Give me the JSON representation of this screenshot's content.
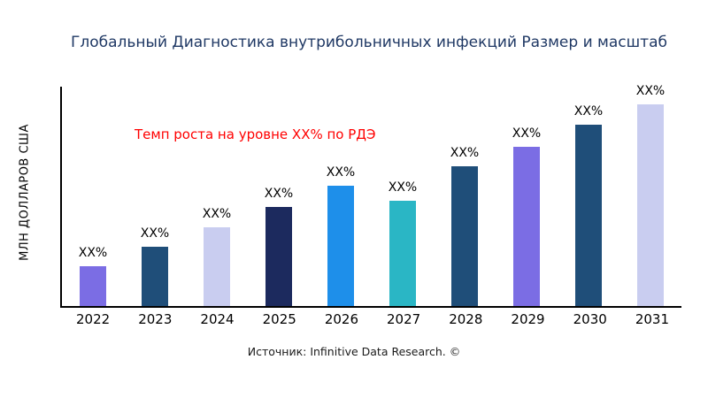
{
  "title": "Глобальный Диагностика внутрибольничных инфекций Размер и масштаб",
  "y_axis_label": "МЛН ДОЛЛАРОВ США",
  "annotation": "Темп роста на уровне XX% по РДЭ",
  "source": "Источник: Infinitive Data Research. ©",
  "colors": {
    "title": "#1f3864",
    "annotation": "#ff0000",
    "axis": "#000000"
  },
  "chart_data": {
    "type": "bar",
    "title": "Глобальный Диагностика внутрибольничных инфекций Размер и масштаб",
    "xlabel": "",
    "ylabel": "МЛН ДОЛЛАРОВ США",
    "categories": [
      "2022",
      "2023",
      "2024",
      "2025",
      "2026",
      "2027",
      "2028",
      "2029",
      "2030",
      "2031"
    ],
    "values": [
      45,
      67,
      89,
      112,
      136,
      119,
      158,
      180,
      205,
      228
    ],
    "bar_labels": [
      "XX%",
      "XX%",
      "XX%",
      "XX%",
      "XX%",
      "XX%",
      "XX%",
      "XX%",
      "XX%",
      "XX%"
    ],
    "bar_colors": [
      "#7b6de4",
      "#1f4e79",
      "#c9cdf0",
      "#1c2a5e",
      "#1e8fea",
      "#2ab6c5",
      "#1f4e79",
      "#7b6de4",
      "#1f4e79",
      "#c9cdf0"
    ],
    "ylim": [
      0,
      250
    ],
    "grid": false,
    "legend": "none",
    "annotation": "Темп роста на уровне XX% по РДЭ"
  }
}
